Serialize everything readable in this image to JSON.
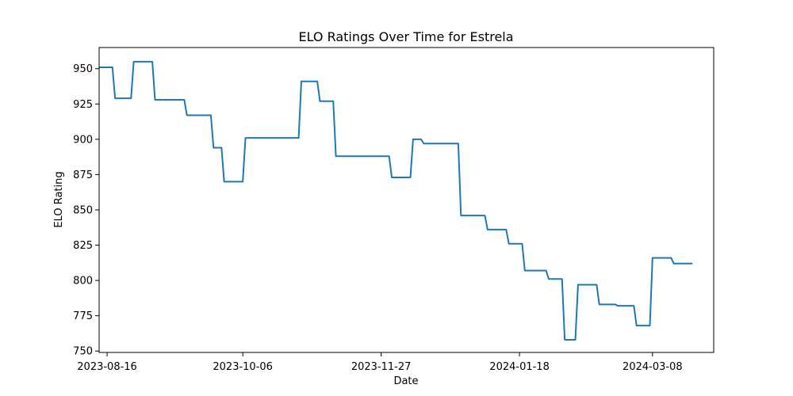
{
  "chart_data": {
    "type": "line",
    "title": "ELO Ratings Over Time for Estrela",
    "xlabel": "Date",
    "ylabel": "ELO Rating",
    "x_ticks": [
      "2023-08-16",
      "2023-10-06",
      "2023-11-27",
      "2024-01-18",
      "2024-03-08"
    ],
    "y_ticks": [
      750,
      775,
      800,
      825,
      850,
      875,
      900,
      925,
      950
    ],
    "xlim": [
      "2023-08-13",
      "2024-03-31"
    ],
    "ylim": [
      749,
      965
    ],
    "grid": false,
    "line_color": "#1f77b4",
    "series": [
      {
        "points": [
          [
            "2023-08-13",
            951
          ],
          [
            "2023-08-18",
            951
          ],
          [
            "2023-08-19",
            929
          ],
          [
            "2023-08-25",
            929
          ],
          [
            "2023-08-26",
            955
          ],
          [
            "2023-09-02",
            955
          ],
          [
            "2023-09-03",
            928
          ],
          [
            "2023-09-14",
            928
          ],
          [
            "2023-09-15",
            917
          ],
          [
            "2023-09-24",
            917
          ],
          [
            "2023-09-25",
            894
          ],
          [
            "2023-09-28",
            894
          ],
          [
            "2023-09-29",
            870
          ],
          [
            "2023-10-06",
            870
          ],
          [
            "2023-10-07",
            901
          ],
          [
            "2023-10-27",
            901
          ],
          [
            "2023-10-28",
            941
          ],
          [
            "2023-11-03",
            941
          ],
          [
            "2023-11-04",
            927
          ],
          [
            "2023-11-09",
            927
          ],
          [
            "2023-11-10",
            888
          ],
          [
            "2023-11-30",
            888
          ],
          [
            "2023-12-01",
            873
          ],
          [
            "2023-12-08",
            873
          ],
          [
            "2023-12-09",
            900
          ],
          [
            "2023-12-12",
            900
          ],
          [
            "2023-12-13",
            897
          ],
          [
            "2023-12-26",
            897
          ],
          [
            "2023-12-27",
            846
          ],
          [
            "2024-01-05",
            846
          ],
          [
            "2024-01-06",
            836
          ],
          [
            "2024-01-13",
            836
          ],
          [
            "2024-01-14",
            826
          ],
          [
            "2024-01-19",
            826
          ],
          [
            "2024-01-20",
            807
          ],
          [
            "2024-01-28",
            807
          ],
          [
            "2024-01-29",
            801
          ],
          [
            "2024-02-03",
            801
          ],
          [
            "2024-02-04",
            758
          ],
          [
            "2024-02-08",
            758
          ],
          [
            "2024-02-09",
            797
          ],
          [
            "2024-02-16",
            797
          ],
          [
            "2024-02-17",
            783
          ],
          [
            "2024-02-23",
            783
          ],
          [
            "2024-02-24",
            782
          ],
          [
            "2024-03-01",
            782
          ],
          [
            "2024-03-02",
            768
          ],
          [
            "2024-03-07",
            768
          ],
          [
            "2024-03-08",
            816
          ],
          [
            "2024-03-15",
            816
          ],
          [
            "2024-03-16",
            812
          ],
          [
            "2024-03-23",
            812
          ]
        ]
      }
    ]
  }
}
